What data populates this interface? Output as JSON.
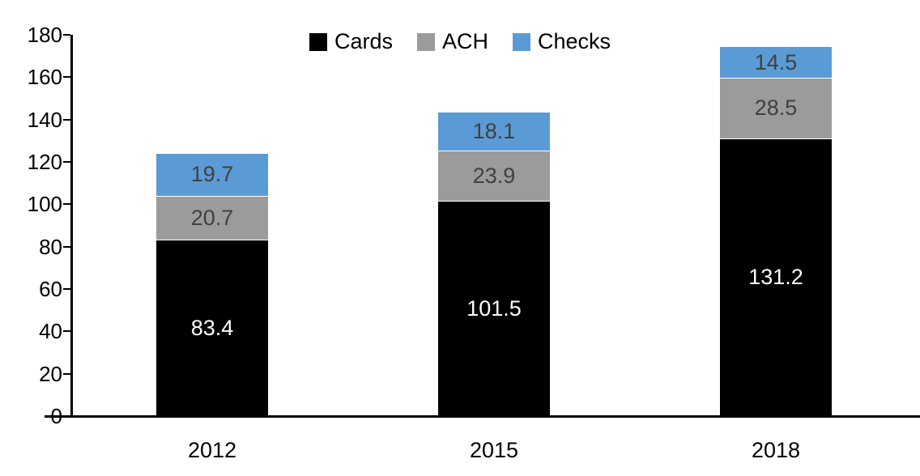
{
  "chart_data": {
    "type": "bar",
    "stacked": true,
    "title": "",
    "categories": [
      "2012",
      "2015",
      "2018"
    ],
    "series": [
      {
        "name": "Cards",
        "values": [
          83.4,
          101.5,
          131.2
        ],
        "color": "#000000",
        "label_color": "#FFFFFF"
      },
      {
        "name": "ACH",
        "values": [
          20.7,
          23.9,
          28.5
        ],
        "color": "#9B9B9B",
        "label_color": "#404040"
      },
      {
        "name": "Checks",
        "values": [
          19.7,
          18.1,
          14.5
        ],
        "color": "#5B9BD5",
        "label_color": "#404040"
      }
    ],
    "stack_order_bottom_to_top": [
      "Cards",
      "ACH",
      "Checks"
    ],
    "totals": [
      123.8,
      143.5,
      174.2
    ],
    "ylim": [
      0,
      180
    ],
    "ytick_step": 20,
    "ytick_labels": [
      "0",
      "20",
      "40",
      "60",
      "80",
      "100",
      "120",
      "140",
      "160",
      "180"
    ],
    "xlabel": "",
    "ylabel": "",
    "legend_position": "top-center",
    "legend_items": [
      "Cards",
      "ACH",
      "Checks"
    ],
    "grid": false,
    "axis_color": "#000000",
    "segment_divider_color": "#FFFFFF"
  }
}
